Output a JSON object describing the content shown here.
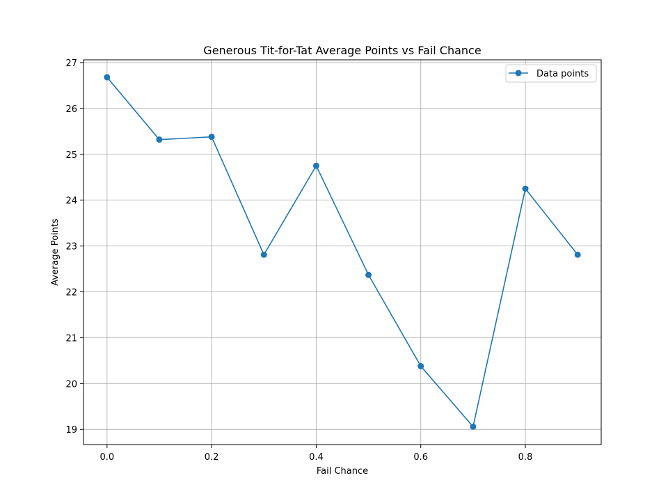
{
  "chart_data": {
    "type": "line",
    "title": "Generous Tit-for-Tat Average Points vs Fail Chance",
    "xlabel": "Fail Chance",
    "ylabel": "Average Points",
    "xlim": [
      -0.045,
      0.945
    ],
    "ylim": [
      18.67,
      27.06
    ],
    "x_ticks": [
      0.0,
      0.2,
      0.4,
      0.6,
      0.8
    ],
    "x_tick_labels": [
      "0.0",
      "0.2",
      "0.4",
      "0.6",
      "0.8"
    ],
    "y_ticks": [
      19,
      20,
      21,
      22,
      23,
      24,
      25,
      26,
      27
    ],
    "y_tick_labels": [
      "19",
      "20",
      "21",
      "22",
      "23",
      "24",
      "25",
      "26",
      "27"
    ],
    "grid": true,
    "legend_position": "top-right",
    "series": [
      {
        "name": "Data points",
        "color": "#1f77b4",
        "marker": "circle",
        "x": [
          0.0,
          0.1,
          0.2,
          0.3,
          0.4,
          0.5,
          0.6,
          0.7,
          0.8,
          0.9
        ],
        "y": [
          26.68,
          25.32,
          25.38,
          22.81,
          24.75,
          22.37,
          20.38,
          19.06,
          24.25,
          22.81
        ]
      }
    ]
  }
}
